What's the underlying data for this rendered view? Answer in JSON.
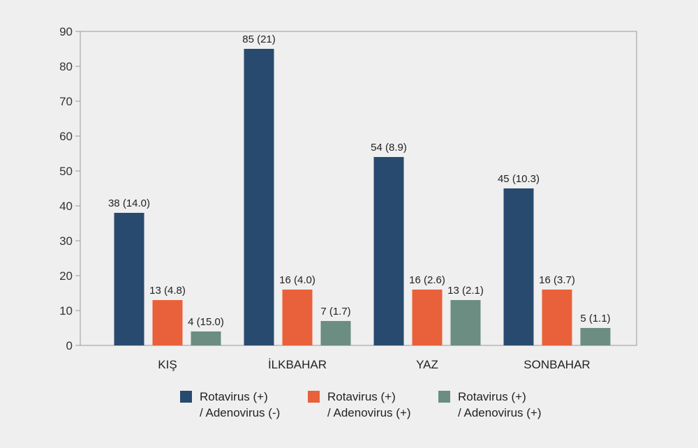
{
  "chart_data": {
    "type": "bar",
    "categories": [
      "KIŞ",
      "İLKBAHAR",
      "YAZ",
      "SONBAHAR"
    ],
    "series": [
      {
        "name_lines": [
          "Rotavirus (+)",
          "/ Adenovirus (-)"
        ],
        "color": "#284a6e",
        "values": [
          38,
          85,
          54,
          45
        ],
        "labels": [
          "38 (14.0)",
          "85 (21)",
          "54 (8.9)",
          "45 (10.3)"
        ]
      },
      {
        "name_lines": [
          "Rotavirus (+)",
          "/ Adenovirus (+)"
        ],
        "color": "#e8613a",
        "values": [
          13,
          16,
          16,
          16
        ],
        "labels": [
          "13 (4.8)",
          "16 (4.0)",
          "16 (2.6)",
          "16 (3.7)"
        ]
      },
      {
        "name_lines": [
          "Rotavirus (+)",
          "/ Adenovirus (+)"
        ],
        "color": "#6b8d82",
        "values": [
          4,
          7,
          13,
          5
        ],
        "labels": [
          "4 (15.0)",
          "7 (1.7)",
          "13 (2.1)",
          "5 (1.1)"
        ]
      }
    ],
    "ylim": [
      0,
      90
    ],
    "yticks": [
      "0",
      "10",
      "20",
      "30",
      "40",
      "50",
      "60",
      "70",
      "80",
      "90"
    ],
    "grid": false,
    "legend_position": "bottom"
  }
}
